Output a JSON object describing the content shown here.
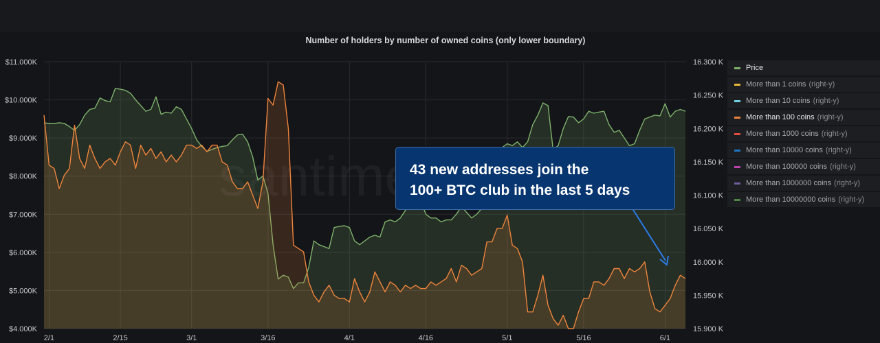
{
  "colors": {
    "price": "#7eb26d",
    "holders100": "#ef843c",
    "more1": "#eab839",
    "more10": "#6ed0e0",
    "more1000": "#e24d42",
    "more10000": "#1f78c1",
    "more100000": "#ba43a9",
    "more1000000": "#705da0",
    "more10000000": "#508642",
    "arrow": "#2b7de9"
  },
  "watermark": "santiment",
  "chart_data": {
    "type": "line",
    "title": "Number of holders by number of owned coins (only lower boundary)",
    "x_tick_labels": [
      "2/1",
      "2/15",
      "3/1",
      "3/16",
      "4/1",
      "4/16",
      "5/1",
      "5/16",
      "6/1"
    ],
    "y_left_tick_labels": [
      "$11.000K",
      "$10.000K",
      "$9.000K",
      "$8.000K",
      "$7.000K",
      "$6.000K",
      "$5.000K",
      "$4.000K"
    ],
    "y_right_tick_labels": [
      "16.300 K",
      "16.250 K",
      "16.200 K",
      "16.150 K",
      "16.100 K",
      "16.050 K",
      "16.000 K",
      "15.950 K",
      "15.900 K"
    ],
    "y_left_range": [
      4000,
      11000
    ],
    "y_right_range": [
      15900,
      16300
    ],
    "x_range_days": [
      0,
      126
    ],
    "x_tick_days": [
      1,
      15,
      29,
      44,
      60,
      75,
      91,
      106,
      122
    ],
    "grid": true,
    "legend_position": "right",
    "series": [
      {
        "name": "Price",
        "axis": "left",
        "x": [
          0,
          1,
          2,
          3,
          4,
          5,
          6,
          7,
          8,
          9,
          10,
          11,
          12,
          13,
          14,
          15,
          16,
          17,
          18,
          19,
          20,
          21,
          22,
          23,
          24,
          25,
          26,
          27,
          28,
          29,
          30,
          31,
          32,
          33,
          34,
          35,
          36,
          37,
          38,
          39,
          40,
          41,
          42,
          43,
          44,
          45,
          46,
          47,
          48,
          49,
          50,
          51,
          52,
          53,
          54,
          55,
          56,
          57,
          58,
          59,
          60,
          61,
          62,
          63,
          64,
          65,
          66,
          67,
          68,
          69,
          70,
          71,
          72,
          73,
          74,
          75,
          76,
          77,
          78,
          79,
          80,
          81,
          82,
          83,
          84,
          85,
          86,
          87,
          88,
          89,
          90,
          91,
          92,
          93,
          94,
          95,
          96,
          97,
          98,
          99,
          100,
          101,
          102,
          103,
          104,
          105,
          106,
          107,
          108,
          109,
          110,
          111,
          112,
          113,
          114,
          115,
          116,
          117,
          118,
          119,
          120,
          121,
          122,
          123,
          124,
          125,
          126
        ],
        "values": [
          9400,
          9380,
          9380,
          9400,
          9380,
          9300,
          9200,
          9350,
          9600,
          9750,
          9780,
          10050,
          9980,
          9950,
          10300,
          10280,
          10250,
          10170,
          10000,
          9850,
          9700,
          9750,
          10080,
          9620,
          9680,
          9650,
          9820,
          9750,
          9500,
          9250,
          8950,
          8780,
          8650,
          8700,
          8750,
          8780,
          8800,
          8950,
          9080,
          9100,
          8900,
          8500,
          7900,
          8000,
          7550,
          6200,
          5300,
          5400,
          5350,
          5050,
          5200,
          5200,
          5600,
          6300,
          6200,
          6150,
          6100,
          6650,
          6680,
          6700,
          6650,
          6300,
          6200,
          6300,
          6400,
          6450,
          6400,
          6800,
          6850,
          6800,
          6900,
          7100,
          7300,
          7300,
          7350,
          7000,
          6900,
          6900,
          6800,
          6850,
          6850,
          7000,
          7200,
          7050,
          6900,
          7000,
          7150,
          7400,
          7750,
          8200,
          8750,
          8850,
          8800,
          8900,
          8750,
          8900,
          9350,
          9600,
          9920,
          9850,
          8700,
          8800,
          9250,
          9560,
          9550,
          9400,
          9500,
          9700,
          9650,
          9680,
          9700,
          9350,
          9150,
          9200,
          9000,
          8800,
          8850,
          9200,
          9500,
          9550,
          9600,
          9580,
          9900,
          9550,
          9700,
          9750,
          9700
        ]
      },
      {
        "name": "More than 100 coins",
        "axis": "right",
        "x": [
          0,
          1,
          2,
          3,
          4,
          5,
          6,
          7,
          8,
          9,
          10,
          11,
          12,
          13,
          14,
          15,
          16,
          17,
          18,
          19,
          20,
          21,
          22,
          23,
          24,
          25,
          26,
          27,
          28,
          29,
          30,
          31,
          32,
          33,
          34,
          35,
          36,
          37,
          38,
          39,
          40,
          41,
          42,
          43,
          44,
          45,
          46,
          47,
          48,
          49,
          50,
          51,
          52,
          53,
          54,
          55,
          56,
          57,
          58,
          59,
          60,
          61,
          62,
          63,
          64,
          65,
          66,
          67,
          68,
          69,
          70,
          71,
          72,
          73,
          74,
          75,
          76,
          77,
          78,
          79,
          80,
          81,
          82,
          83,
          84,
          85,
          86,
          87,
          88,
          89,
          90,
          91,
          92,
          93,
          94,
          95,
          96,
          97,
          98,
          99,
          100,
          101,
          102,
          103,
          104,
          105,
          106,
          107,
          108,
          109,
          110,
          111,
          112,
          113,
          114,
          115,
          116,
          117,
          118,
          119,
          120,
          121,
          122,
          123,
          124,
          125,
          126
        ],
        "values": [
          16220,
          16145,
          16140,
          16110,
          16130,
          16140,
          16205,
          16155,
          16140,
          16175,
          16155,
          16140,
          16150,
          16155,
          16145,
          16165,
          16180,
          16175,
          16140,
          16175,
          16160,
          16170,
          16155,
          16165,
          16150,
          16160,
          16150,
          16160,
          16175,
          16175,
          16170,
          16175,
          16165,
          16175,
          16175,
          16150,
          16145,
          16120,
          16110,
          16110,
          16120,
          16100,
          16080,
          16120,
          16245,
          16235,
          16270,
          16265,
          16200,
          16025,
          16020,
          16015,
          15970,
          15950,
          15940,
          15955,
          15965,
          15950,
          15945,
          15945,
          15940,
          15975,
          15955,
          15940,
          15955,
          15985,
          15970,
          15955,
          15970,
          15965,
          15955,
          15965,
          15960,
          15965,
          15960,
          15960,
          15970,
          15965,
          15970,
          15975,
          15990,
          15970,
          15995,
          15990,
          15980,
          15985,
          15990,
          16030,
          16030,
          16050,
          16050,
          16070,
          16025,
          16020,
          16000,
          15925,
          15925,
          15950,
          15980,
          15935,
          15915,
          15905,
          15920,
          15900,
          15900,
          15925,
          15945,
          15945,
          15970,
          15970,
          15965,
          15975,
          15990,
          15990,
          15975,
          15990,
          15985,
          15990,
          16000,
          15955,
          15930,
          15925,
          15935,
          15945,
          15965,
          15980,
          15975
        ]
      }
    ]
  },
  "legend": {
    "items": [
      {
        "label": "Price",
        "suffix": ""
      },
      {
        "label": "More than 1 coins",
        "suffix": "(right-y)"
      },
      {
        "label": "More than 10 coins",
        "suffix": "(right-y)"
      },
      {
        "label": "More than 100 coins",
        "suffix": "(right-y)"
      },
      {
        "label": "More than 1000 coins",
        "suffix": "(right-y)"
      },
      {
        "label": "More than 10000 coins",
        "suffix": "(right-y)"
      },
      {
        "label": "More than 100000 coins",
        "suffix": "(right-y)"
      },
      {
        "label": "More than 1000000 coins",
        "suffix": "(right-y)"
      },
      {
        "label": "More than 10000000 coins",
        "suffix": "(right-y)"
      }
    ]
  },
  "callout": {
    "line1": "43 new addresses join the",
    "line2": "100+ BTC club in the last 5 days"
  }
}
